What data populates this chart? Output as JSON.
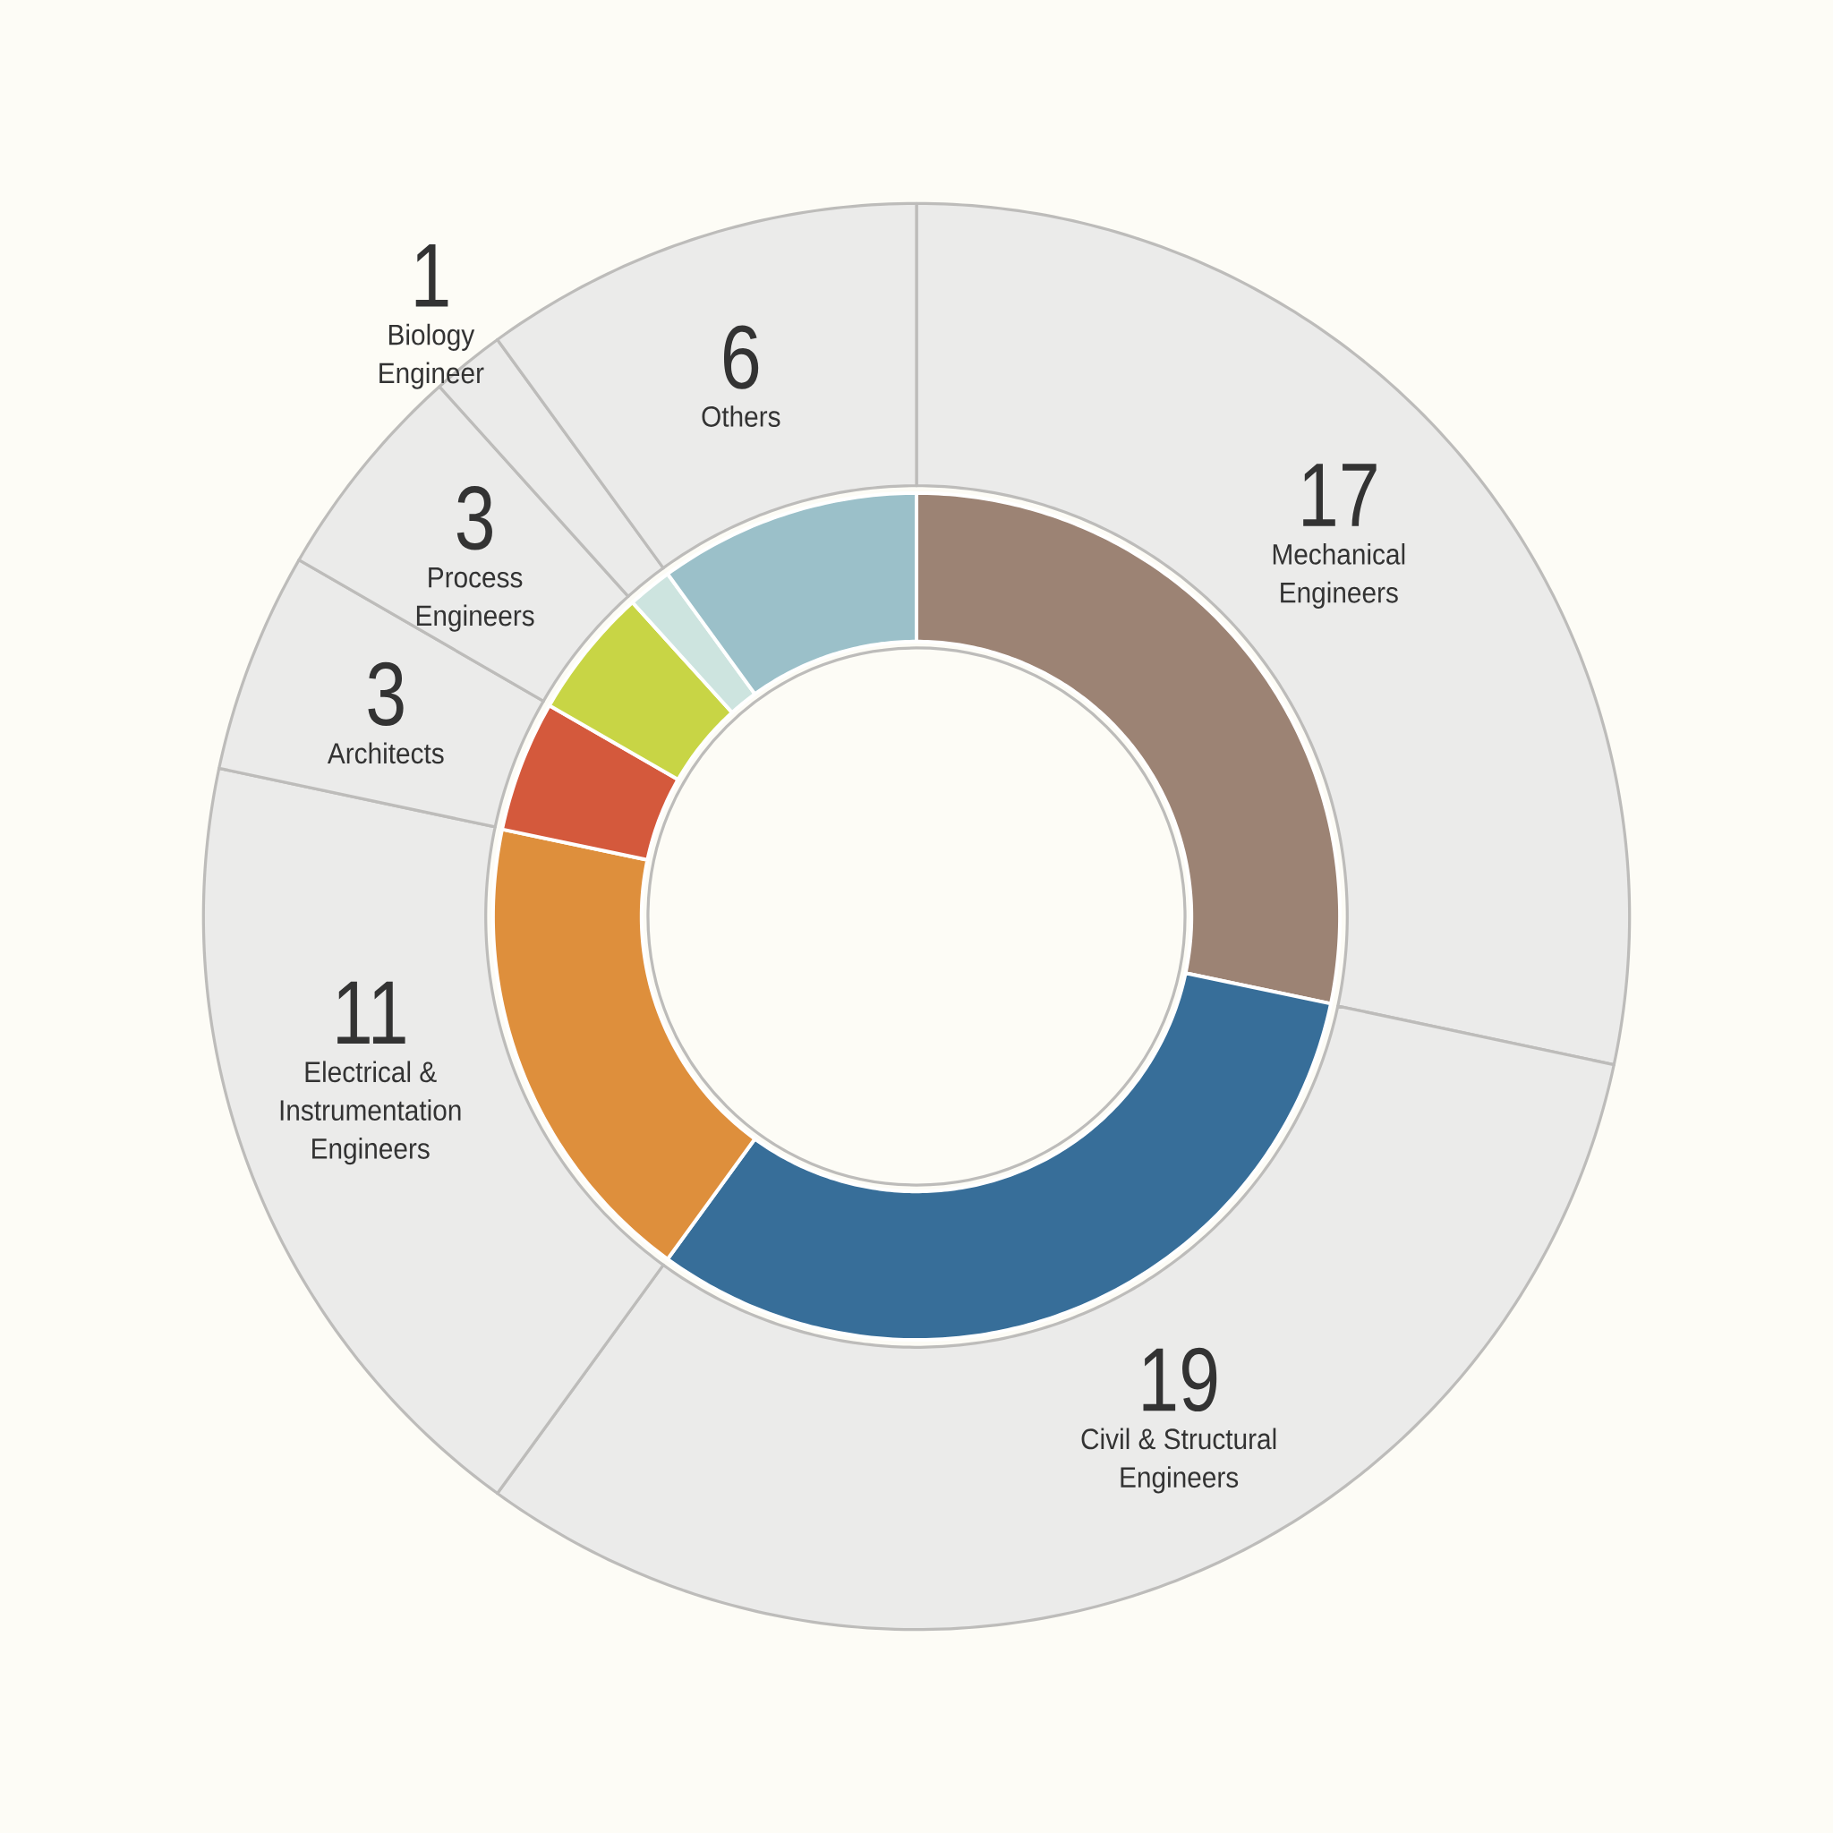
{
  "chart_data": {
    "type": "donut",
    "categories": [
      "Mechanical Engineers",
      "Civil & Structural Engineers",
      "Electrical & Instrumentation Engineers",
      "Architects",
      "Process Engineers",
      "Biology Engineer",
      "Others"
    ],
    "series": [
      {
        "values": [
          17,
          19,
          11,
          3,
          3,
          1,
          6
        ],
        "color": "#ebebea",
        "value_labels": [
          "17",
          "19",
          "11",
          "3",
          "3",
          "1",
          "6"
        ]
      },
      {
        "values": [
          28.3,
          31.7,
          18.3,
          5,
          5,
          1.7,
          10
        ],
        "colors": [
          "#9c8374",
          "#376e99",
          "#de8f3c",
          "#d4593c",
          "#c8d545",
          "#cde4df",
          "#9bc0c9"
        ]
      }
    ]
  }
}
